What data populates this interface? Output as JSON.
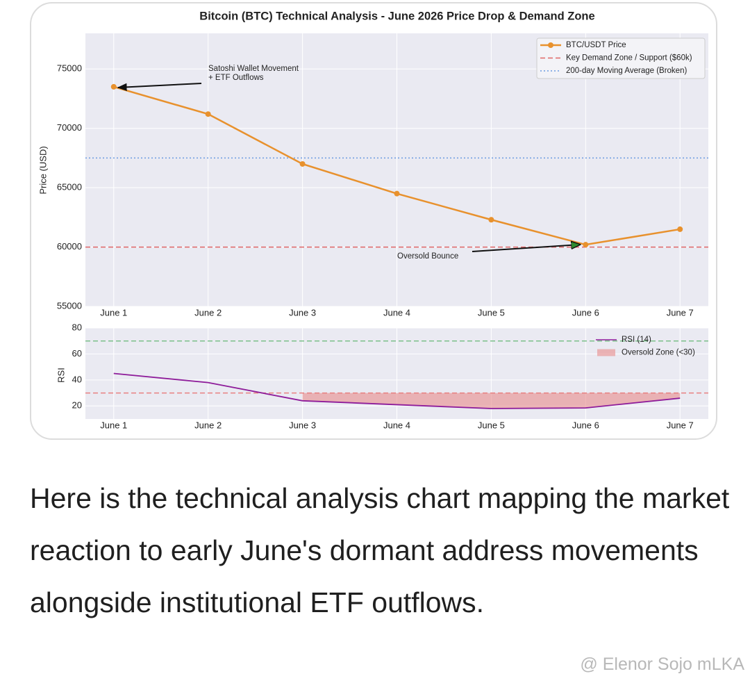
{
  "chart_data": [
    {
      "type": "line",
      "title": "Bitcoin (BTC) Technical Analysis - June 2026 Price Drop & Demand Zone",
      "y_label": "Price (USD)",
      "categories": [
        "June 1",
        "June 2",
        "June 3",
        "June 4",
        "June 5",
        "June 6",
        "June 7"
      ],
      "series": [
        {
          "name": "BTC/USDT Price",
          "color": "#e8912d",
          "marker": "o",
          "values": [
            73500,
            71200,
            67000,
            64500,
            62300,
            60200,
            61500
          ]
        }
      ],
      "hlines": [
        {
          "name": "Key Demand Zone / Support ($60k)",
          "value": 60000,
          "color": "#e06666",
          "style": "dashed"
        },
        {
          "name": "200-day Moving Average (Broken)",
          "value": 67500,
          "color": "#6b9be0",
          "style": "dotted"
        }
      ],
      "annotations": [
        [
          "Satoshi Wallet Movement",
          "+ ETF Outflows"
        ],
        [
          "Oversold Bounce"
        ]
      ],
      "ylim": [
        55000,
        78000
      ],
      "yticks": [
        55000,
        60000,
        65000,
        70000,
        75000
      ],
      "grid": true,
      "legend": "upper right"
    },
    {
      "type": "line",
      "y_label": "RSI",
      "categories": [
        "June 1",
        "June 2",
        "June 3",
        "June 4",
        "June 5",
        "June 6",
        "June 7"
      ],
      "series": [
        {
          "name": "RSI (14)",
          "color": "#8e1c9a",
          "values": [
            45,
            38,
            24,
            21,
            18,
            18.5,
            26
          ]
        }
      ],
      "hlines": [
        {
          "value": 70,
          "color": "#7cc08a",
          "style": "dashed"
        },
        {
          "value": 30,
          "color": "#e88080",
          "style": "dashed"
        }
      ],
      "fill": {
        "name": "Oversold Zone (<30)",
        "threshold": 30,
        "color": "#e88a8a"
      },
      "ylim": [
        10,
        80
      ],
      "yticks": [
        20,
        40,
        60,
        80
      ],
      "grid": true,
      "legend": "upper right"
    }
  ],
  "message": "Here is the technical analysis chart mapping the market reaction to early June's dormant address movements alongside institutional ETF outflows.",
  "watermark": "@ Elenor Sojo mLKA"
}
